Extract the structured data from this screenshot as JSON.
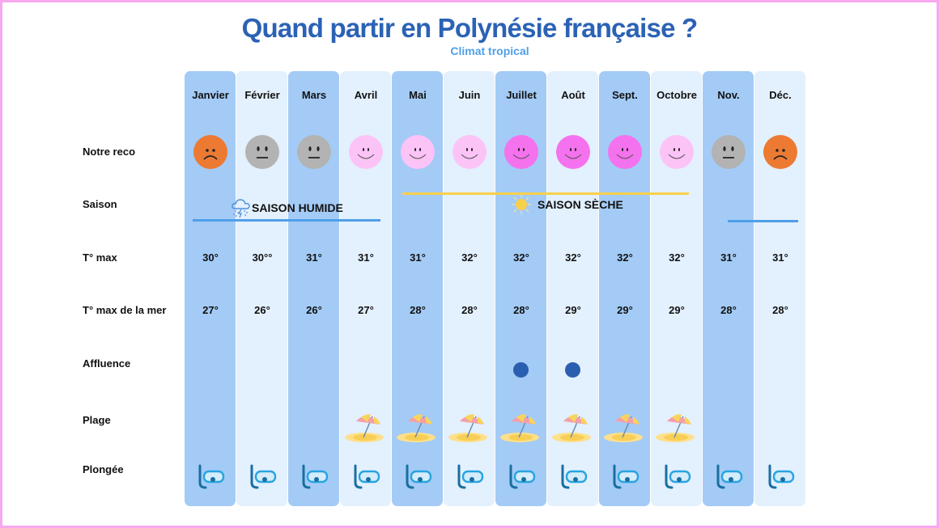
{
  "header": {
    "title": "Quand partir en Polynésie française ?",
    "subtitle": "Climat tropical"
  },
  "rows": {
    "reco": "Notre reco",
    "saison": "Saison",
    "tmax": "T°  max",
    "tmer": "T° max de la mer",
    "affluence": "Affluence",
    "plage": "Plage",
    "plongee": "Plongée"
  },
  "seasons": {
    "wet": {
      "label": "SAISON HUMIDE",
      "icon": "storm-cloud-icon",
      "color": "#4f9fe8"
    },
    "dry": {
      "label": "SAISON SÈCHE",
      "icon": "sun-icon",
      "color": "#f8d04c"
    }
  },
  "colors": {
    "col_dark": "#a3cbf6",
    "col_light": "#e3f0fe",
    "title": "#2b62b5",
    "subtitle": "#4f9fe8",
    "border": "#f7a8ee",
    "face_bad": "#ec7a33",
    "face_neutral": "#b3b3b3",
    "face_good": "#fcc3f7",
    "face_best": "#f472ee",
    "affluence_dot": "#2a5fb0"
  },
  "months": [
    {
      "name": "Janvier",
      "reco": "bad",
      "tmax": "30°",
      "tmer": "27°",
      "affluence": false,
      "plage": false,
      "plongee": true
    },
    {
      "name": "Février",
      "reco": "neutral",
      "tmax": "30°°",
      "tmer": "26°",
      "affluence": false,
      "plage": false,
      "plongee": true
    },
    {
      "name": "Mars",
      "reco": "neutral",
      "tmax": "31°",
      "tmer": "26°",
      "affluence": false,
      "plage": false,
      "plongee": true
    },
    {
      "name": "Avril",
      "reco": "good",
      "tmax": "31°",
      "tmer": "27°",
      "affluence": false,
      "plage": true,
      "plongee": true
    },
    {
      "name": "Mai",
      "reco": "good",
      "tmax": "31°",
      "tmer": "28°",
      "affluence": false,
      "plage": true,
      "plongee": true
    },
    {
      "name": "Juin",
      "reco": "good",
      "tmax": "32°",
      "tmer": "28°",
      "affluence": false,
      "plage": true,
      "plongee": true
    },
    {
      "name": "Juillet",
      "reco": "best",
      "tmax": "32°",
      "tmer": "28°",
      "affluence": true,
      "plage": true,
      "plongee": true
    },
    {
      "name": "Août",
      "reco": "best",
      "tmax": "32°",
      "tmer": "29°",
      "affluence": true,
      "plage": true,
      "plongee": true
    },
    {
      "name": "Sept.",
      "reco": "best",
      "tmax": "32°",
      "tmer": "29°",
      "affluence": false,
      "plage": true,
      "plongee": true
    },
    {
      "name": "Octobre",
      "reco": "good",
      "tmax": "32°",
      "tmer": "29°",
      "affluence": false,
      "plage": true,
      "plongee": true
    },
    {
      "name": "Nov.",
      "reco": "neutral",
      "tmax": "31°",
      "tmer": "28°",
      "affluence": false,
      "plage": false,
      "plongee": true
    },
    {
      "name": "Déc.",
      "reco": "bad",
      "tmax": "31°",
      "tmer": "28°",
      "affluence": false,
      "plage": false,
      "plongee": true
    }
  ]
}
